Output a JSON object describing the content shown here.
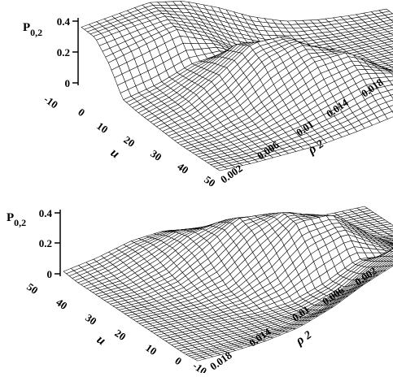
{
  "chart_data": [
    {
      "type": "surface",
      "zlabel_main": "P",
      "zlabel_sub": "0,2",
      "xlabel": "u",
      "ylabel_main": "ρ",
      "ylabel_sub": "2",
      "zlim": [
        0,
        0.4
      ],
      "zticks": [
        "0",
        "0.2",
        "0.4"
      ],
      "u_ticks": [
        "-10",
        "0",
        "10",
        "20",
        "30",
        "40",
        "50"
      ],
      "rho_ticks": [
        "0.002",
        "0.006",
        "0.01",
        "0.014",
        "0.018"
      ],
      "view": "u increases toward front-left, rho2 increases toward front-right",
      "surface_values": [
        [
          0.34,
          0.37,
          0.4,
          0.36,
          0.27,
          0.16,
          0.08,
          0.04,
          0.02,
          0.01
        ],
        [
          0.33,
          0.36,
          0.38,
          0.3,
          0.18,
          0.08,
          0.03,
          0.01,
          0.0,
          0.0
        ],
        [
          0.22,
          0.28,
          0.34,
          0.24,
          0.1,
          0.03,
          0.01,
          0.0,
          0.0,
          0.0
        ],
        [
          0.05,
          0.1,
          0.18,
          0.2,
          0.09,
          0.02,
          0.0,
          0.0,
          0.0,
          0.0
        ],
        [
          0.03,
          0.09,
          0.2,
          0.33,
          0.26,
          0.09,
          0.02,
          0.0,
          0.0,
          0.0
        ],
        [
          0.02,
          0.08,
          0.22,
          0.38,
          0.38,
          0.2,
          0.05,
          0.01,
          0.0,
          0.0
        ],
        [
          0.01,
          0.05,
          0.15,
          0.32,
          0.39,
          0.3,
          0.12,
          0.03,
          0.0,
          0.0
        ],
        [
          0.0,
          0.02,
          0.08,
          0.2,
          0.32,
          0.34,
          0.2,
          0.06,
          0.01,
          0.0
        ],
        [
          0.0,
          0.01,
          0.04,
          0.11,
          0.2,
          0.27,
          0.22,
          0.1,
          0.02,
          0.0
        ],
        [
          0.0,
          0.0,
          0.02,
          0.05,
          0.1,
          0.17,
          0.19,
          0.12,
          0.04,
          0.0
        ],
        [
          0.0,
          0.0,
          0.01,
          0.02,
          0.05,
          0.09,
          0.13,
          0.11,
          0.05,
          0.01
        ]
      ],
      "u_samples": [
        -10,
        -5,
        0,
        5,
        10,
        15,
        20,
        25,
        30,
        40,
        50
      ],
      "rho_samples": [
        0.018,
        0.016,
        0.014,
        0.012,
        0.01,
        0.008,
        0.006,
        0.004,
        0.003,
        0.002
      ]
    },
    {
      "type": "surface",
      "zlabel_main": "P",
      "zlabel_sub": "0,2",
      "xlabel": "u",
      "ylabel_main": "ρ",
      "ylabel_sub": "2",
      "zlim": [
        0,
        0.4
      ],
      "zticks": [
        "0",
        "0.2",
        "0.4"
      ],
      "u_ticks": [
        "50",
        "40",
        "30",
        "20",
        "10",
        "0",
        "-10"
      ],
      "rho_ticks": [
        "0.018",
        "0.014",
        "0.01",
        "0.006",
        "0.002"
      ],
      "view": "same surface viewed from the opposite side"
    }
  ]
}
